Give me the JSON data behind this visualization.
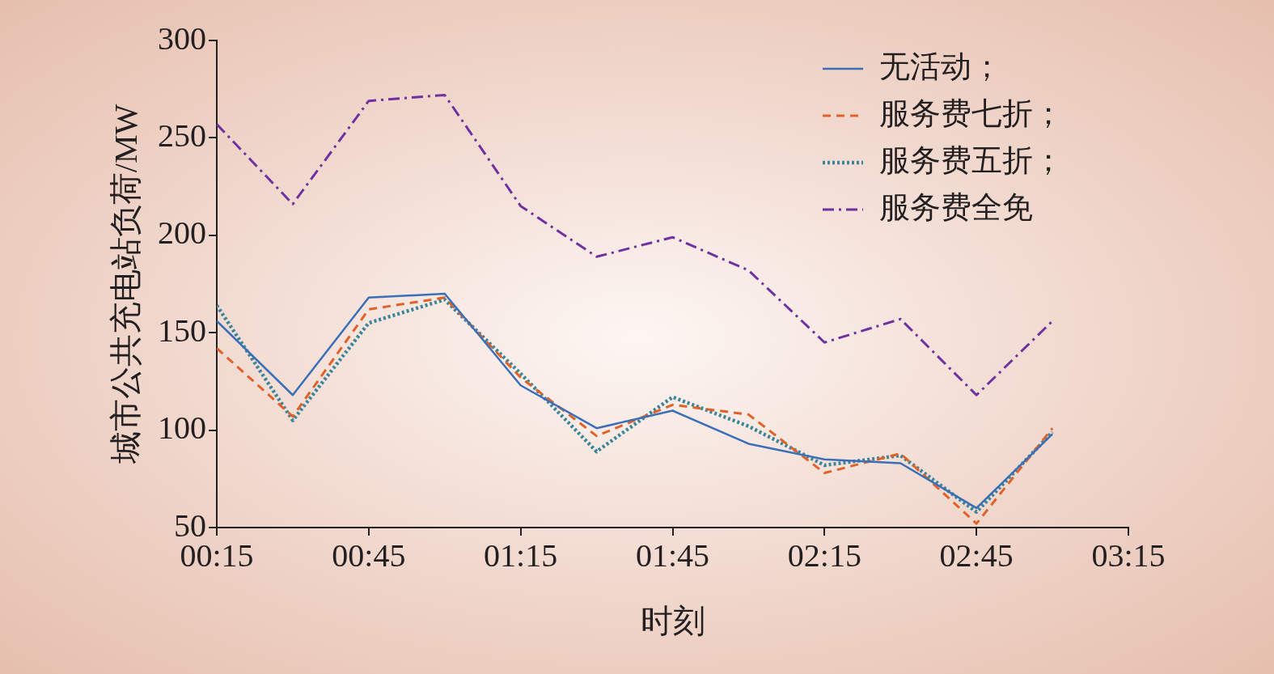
{
  "chart_data": {
    "type": "line",
    "xlabel": "时刻",
    "ylabel": "城市公共充电站负荷/MW",
    "x": [
      0.25,
      0.5,
      0.75,
      1.0,
      1.25,
      1.5,
      1.75,
      2.0,
      2.25,
      2.5,
      2.75,
      3.0
    ],
    "xlim": [
      0.25,
      3.25
    ],
    "xticks": [
      {
        "value": 0.25,
        "label": "00:15"
      },
      {
        "value": 0.75,
        "label": "00:45"
      },
      {
        "value": 1.25,
        "label": "01:15"
      },
      {
        "value": 1.75,
        "label": "01:45"
      },
      {
        "value": 2.25,
        "label": "02:15"
      },
      {
        "value": 2.75,
        "label": "02:45"
      },
      {
        "value": 3.25,
        "label": "03:15"
      }
    ],
    "ylim": [
      50,
      300
    ],
    "yticks": [
      50,
      100,
      150,
      200,
      250,
      300
    ],
    "grid": false,
    "legend": "top right",
    "marker": "none",
    "series": [
      {
        "name": "无活动；",
        "color": "#3a6fb8",
        "line_style": "solid",
        "values": [
          156,
          118,
          168,
          170,
          123,
          101,
          110,
          93,
          85,
          83,
          60,
          98
        ]
      },
      {
        "name": "服务费七折；",
        "color": "#e0622a",
        "line_style": "dashed",
        "values": [
          142,
          107,
          162,
          168,
          127,
          97,
          113,
          108,
          78,
          88,
          52,
          101
        ]
      },
      {
        "name": "服务费五折；",
        "color": "#3a8599",
        "line_style": "dotted",
        "values": [
          164,
          105,
          155,
          167,
          129,
          89,
          117,
          102,
          82,
          87,
          58,
          99
        ]
      },
      {
        "name": "服务费全免",
        "color": "#7030a0",
        "line_style": "dashdot",
        "values": [
          257,
          216,
          269,
          272,
          215,
          189,
          199,
          182,
          145,
          157,
          118,
          156
        ]
      }
    ]
  }
}
